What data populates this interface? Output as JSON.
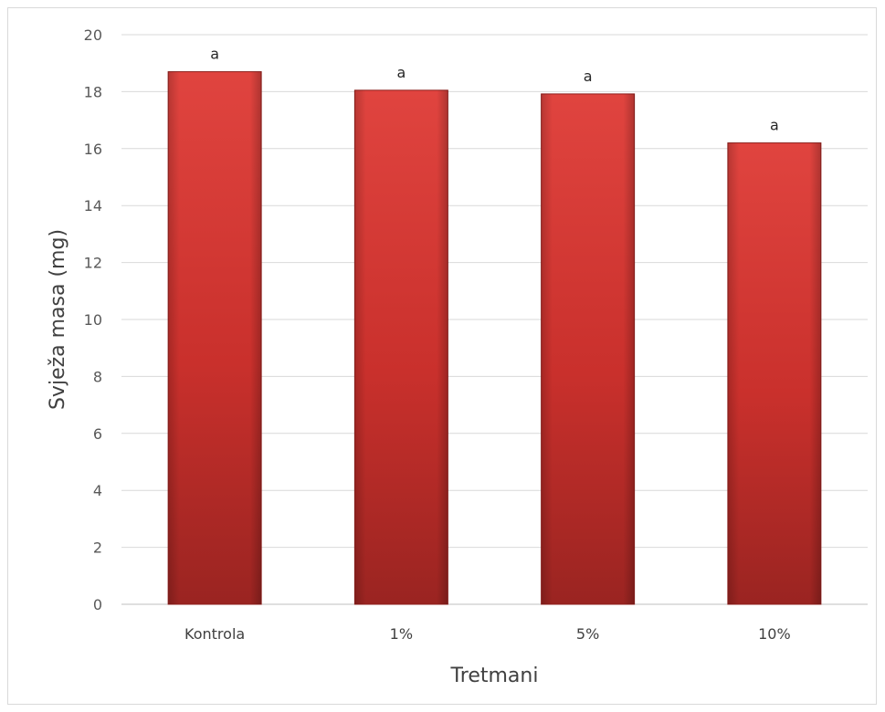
{
  "chart_data": {
    "type": "bar",
    "title": "",
    "xlabel": "Tretmani",
    "ylabel": "Svježa masa (mg)",
    "categories": [
      "Kontrola",
      "1%",
      "5%",
      "10%"
    ],
    "values": [
      18.7,
      18.05,
      17.92,
      16.2
    ],
    "data_labels": [
      "a",
      "a",
      "a",
      "a"
    ],
    "ylim": [
      0,
      20
    ],
    "yticks": [
      0,
      2,
      4,
      6,
      8,
      10,
      12,
      14,
      16,
      18,
      20
    ],
    "grid": true,
    "legend": "none",
    "colors": {
      "bar_light": "#e0443f",
      "bar_mid": "#c9302c",
      "bar_dark": "#9a2421",
      "grid": "#d9d9d9",
      "axis": "#bfbfbf"
    }
  }
}
